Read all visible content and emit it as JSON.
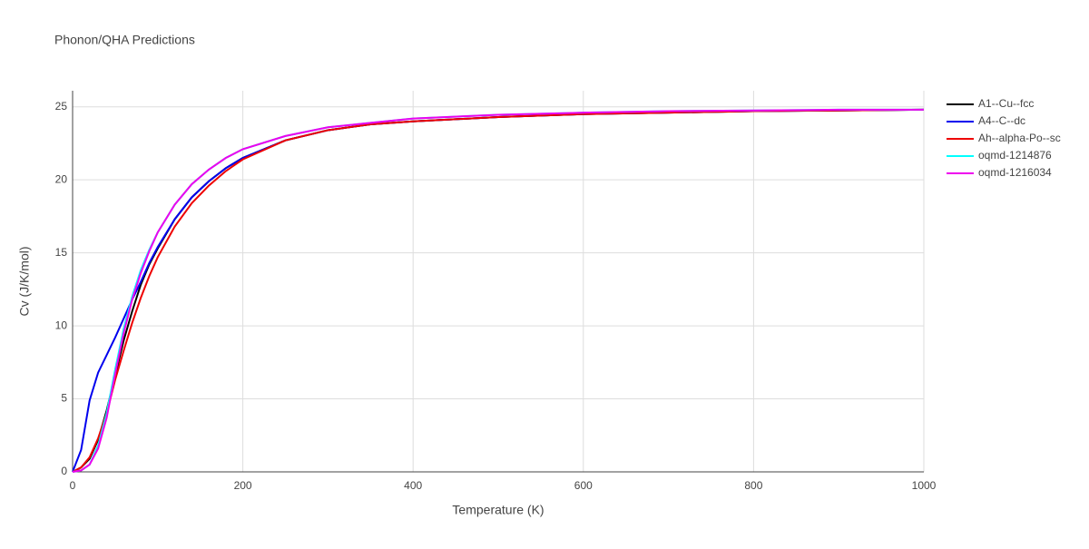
{
  "chart_data": {
    "type": "line",
    "title": "Phonon/QHA Predictions",
    "xlabel": "Temperature (K)",
    "ylabel": "Cv (J/K/mol)",
    "x": [
      0,
      10,
      20,
      30,
      40,
      50,
      60,
      70,
      80,
      90,
      100,
      120,
      140,
      160,
      180,
      200,
      250,
      300,
      350,
      400,
      500,
      600,
      700,
      800,
      900,
      1000
    ],
    "series": [
      {
        "name": "A1--Cu--fcc",
        "color": "#000000",
        "values": [
          0,
          0.3,
          0.9,
          2.2,
          4.2,
          6.6,
          9.0,
          11.0,
          12.8,
          14.2,
          15.3,
          17.3,
          18.8,
          19.9,
          20.8,
          21.5,
          22.7,
          23.4,
          23.8,
          24.0,
          24.3,
          24.5,
          24.6,
          24.7,
          24.75,
          24.8
        ]
      },
      {
        "name": "A4--C--dc",
        "color": "#0000ee",
        "values": [
          0,
          1.5,
          4.9,
          6.8,
          8.0,
          9.2,
          10.5,
          11.8,
          13.0,
          14.3,
          15.4,
          17.3,
          18.8,
          19.9,
          20.8,
          21.5,
          22.7,
          23.4,
          23.8,
          24.0,
          24.3,
          24.5,
          24.6,
          24.7,
          24.75,
          24.8
        ]
      },
      {
        "name": "Ah--alpha-Po--sc",
        "color": "#ee0000",
        "values": [
          0,
          0.3,
          1.0,
          2.3,
          4.0,
          6.3,
          8.3,
          10.2,
          11.9,
          13.4,
          14.7,
          16.8,
          18.4,
          19.6,
          20.6,
          21.4,
          22.7,
          23.4,
          23.8,
          24.0,
          24.3,
          24.5,
          24.6,
          24.7,
          24.75,
          24.8
        ]
      },
      {
        "name": "oqmd-1214876",
        "color": "#00ffff",
        "values": [
          0,
          0.1,
          0.5,
          1.8,
          4.0,
          7.0,
          9.8,
          12.0,
          13.8,
          15.2,
          16.4,
          18.3,
          19.7,
          20.7,
          21.5,
          22.1,
          23.0,
          23.6,
          23.9,
          24.2,
          24.45,
          24.6,
          24.7,
          24.75,
          24.8,
          24.8
        ]
      },
      {
        "name": "oqmd-1216034",
        "color": "#ee00ee",
        "values": [
          0,
          0.1,
          0.5,
          1.6,
          3.7,
          6.7,
          9.5,
          11.8,
          13.6,
          15.1,
          16.4,
          18.3,
          19.7,
          20.7,
          21.5,
          22.1,
          23.0,
          23.6,
          23.9,
          24.2,
          24.45,
          24.6,
          24.7,
          24.75,
          24.8,
          24.8
        ]
      }
    ],
    "xlim": [
      0,
      1000
    ],
    "ylim": [
      0,
      26.1
    ],
    "xticks": [
      0,
      200,
      400,
      600,
      800,
      1000
    ],
    "yticks": [
      0,
      5,
      10,
      15,
      20,
      25
    ],
    "grid": true,
    "legend": "right"
  }
}
